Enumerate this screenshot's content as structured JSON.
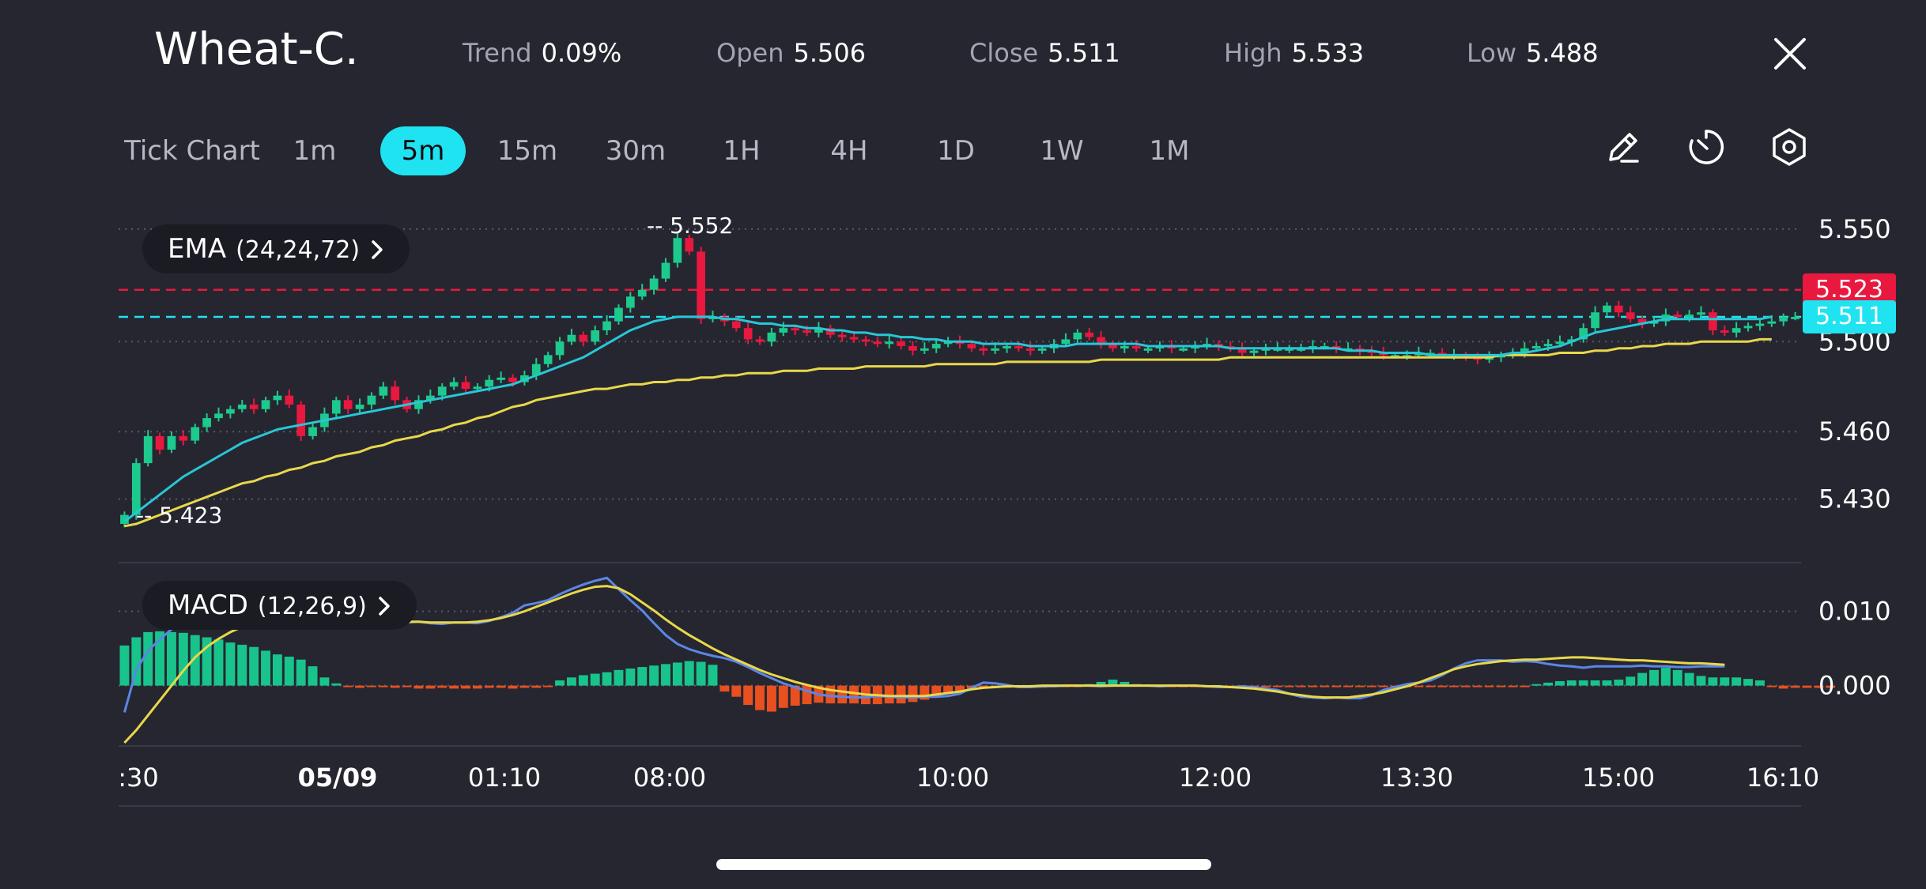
{
  "header": {
    "symbol": "Wheat-C.",
    "stats": [
      {
        "label": "Trend",
        "value": "0.09%"
      },
      {
        "label": "Open",
        "value": "5.506"
      },
      {
        "label": "Close",
        "value": "5.511"
      },
      {
        "label": "High",
        "value": "5.533"
      },
      {
        "label": "Low",
        "value": "5.488"
      }
    ]
  },
  "toolbar": {
    "timeframes": [
      "Tick Chart",
      "1m",
      "5m",
      "15m",
      "30m",
      "1H",
      "4H",
      "1D",
      "1W",
      "1M"
    ],
    "active": "5m",
    "tools": [
      "pencil-icon",
      "timer-icon",
      "settings-hexagon-icon"
    ]
  },
  "indicators": {
    "ema": {
      "name": "EMA",
      "params": "(24,24,72)"
    },
    "macd": {
      "name": "MACD",
      "params": "(12,26,9)"
    }
  },
  "colors": {
    "background": "#262631",
    "up": "#1ec98d",
    "down": "#e8183f",
    "ema_fast": "#27c7d6",
    "ema_slow": "#e8d84a",
    "macd_line": "#5b86e5",
    "signal_line": "#e8d84a",
    "hist_pos": "#18c48c",
    "hist_neg": "#e8501f",
    "accent": "#1fe3f0"
  },
  "chart_data": {
    "type": "candlestick",
    "price_axis": {
      "ticks": [
        5.55,
        5.5,
        5.46,
        5.43
      ],
      "tick_labels": [
        "5.550",
        "5.500",
        "5.460",
        "5.430"
      ],
      "range": [
        5.406,
        5.564
      ]
    },
    "x_axis_labels": [
      ":30",
      "05/09",
      "01:10",
      "08:00",
      "10:00",
      "12:00",
      "13:30",
      "15:00",
      "16:10"
    ],
    "price_lines": [
      {
        "label": "5.523",
        "value": 5.523,
        "color": "#e8183f"
      },
      {
        "label": "5.511",
        "value": 5.511,
        "color": "#1fe3f0"
      }
    ],
    "annotations": [
      {
        "label": "-- 5.552",
        "value": 5.552
      },
      {
        "label": "-- 5.423",
        "value": 5.423
      }
    ],
    "closes": [
      5.423,
      5.446,
      5.458,
      5.452,
      5.458,
      5.456,
      5.462,
      5.466,
      5.468,
      5.47,
      5.472,
      5.47,
      5.474,
      5.476,
      5.472,
      5.458,
      5.462,
      5.468,
      5.474,
      5.47,
      5.472,
      5.476,
      5.48,
      5.474,
      5.47,
      5.474,
      5.476,
      5.48,
      5.482,
      5.479,
      5.48,
      5.483,
      5.484,
      5.482,
      5.485,
      5.49,
      5.494,
      5.5,
      5.503,
      5.5,
      5.505,
      5.509,
      5.515,
      5.52,
      5.523,
      5.528,
      5.535,
      5.546,
      5.54,
      5.51,
      5.511,
      5.509,
      5.506,
      5.501,
      5.5,
      5.504,
      5.506,
      5.505,
      5.504,
      5.506,
      5.503,
      5.502,
      5.501,
      5.5,
      5.499,
      5.5,
      5.498,
      5.496,
      5.497,
      5.499,
      5.5,
      5.499,
      5.497,
      5.496,
      5.497,
      5.498,
      5.497,
      5.496,
      5.497,
      5.499,
      5.501,
      5.504,
      5.502,
      5.499,
      5.497,
      5.498,
      5.497,
      5.497,
      5.498,
      5.497,
      5.497,
      5.498,
      5.499,
      5.498,
      5.497,
      5.495,
      5.496,
      5.497,
      5.497,
      5.497,
      5.497,
      5.498,
      5.498,
      5.497,
      5.497,
      5.496,
      5.495,
      5.494,
      5.494,
      5.494,
      5.495,
      5.495,
      5.494,
      5.494,
      5.493,
      5.492,
      5.493,
      5.494,
      5.495,
      5.497,
      5.498,
      5.499,
      5.5,
      5.501,
      5.506,
      5.513,
      5.516,
      5.513,
      5.51,
      5.508,
      5.509,
      5.512,
      5.511,
      5.512,
      5.513,
      5.505,
      5.504,
      5.506,
      5.507,
      5.508,
      5.509,
      5.511,
      5.511
    ],
    "ema_fast": [
      5.42,
      5.424,
      5.428,
      5.432,
      5.436,
      5.44,
      5.443,
      5.446,
      5.449,
      5.452,
      5.455,
      5.457,
      5.459,
      5.461,
      5.462,
      5.463,
      5.464,
      5.465,
      5.466,
      5.467,
      5.468,
      5.469,
      5.47,
      5.471,
      5.472,
      5.473,
      5.474,
      5.475,
      5.476,
      5.477,
      5.478,
      5.479,
      5.48,
      5.481,
      5.483,
      5.485,
      5.487,
      5.489,
      5.491,
      5.493,
      5.496,
      5.499,
      5.502,
      5.505,
      5.507,
      5.509,
      5.51,
      5.511,
      5.511,
      5.511,
      5.511,
      5.51,
      5.51,
      5.509,
      5.508,
      5.508,
      5.507,
      5.507,
      5.506,
      5.506,
      5.505,
      5.505,
      5.504,
      5.504,
      5.503,
      5.503,
      5.502,
      5.502,
      5.501,
      5.501,
      5.5,
      5.5,
      5.5,
      5.499,
      5.499,
      5.499,
      5.499,
      5.498,
      5.498,
      5.498,
      5.498,
      5.499,
      5.499,
      5.499,
      5.499,
      5.499,
      5.499,
      5.498,
      5.498,
      5.498,
      5.498,
      5.498,
      5.498,
      5.498,
      5.497,
      5.497,
      5.497,
      5.497,
      5.497,
      5.497,
      5.497,
      5.497,
      5.497,
      5.497,
      5.496,
      5.496,
      5.496,
      5.495,
      5.495,
      5.495,
      5.495,
      5.494,
      5.494,
      5.494,
      5.494,
      5.494,
      5.494,
      5.494,
      5.495,
      5.495,
      5.496,
      5.497,
      5.498,
      5.5,
      5.502,
      5.504,
      5.505,
      5.506,
      5.507,
      5.508,
      5.509,
      5.51,
      5.51,
      5.51,
      5.51,
      5.51,
      5.51,
      5.51,
      5.51,
      5.51,
      5.511
    ],
    "ema_slow": [
      5.418,
      5.419,
      5.421,
      5.423,
      5.425,
      5.427,
      5.429,
      5.431,
      5.433,
      5.435,
      5.437,
      5.438,
      5.44,
      5.441,
      5.443,
      5.444,
      5.446,
      5.447,
      5.449,
      5.45,
      5.451,
      5.453,
      5.454,
      5.456,
      5.457,
      5.458,
      5.46,
      5.461,
      5.463,
      5.464,
      5.466,
      5.467,
      5.469,
      5.471,
      5.472,
      5.474,
      5.475,
      5.476,
      5.477,
      5.478,
      5.479,
      5.479,
      5.48,
      5.481,
      5.481,
      5.482,
      5.482,
      5.483,
      5.483,
      5.484,
      5.484,
      5.485,
      5.485,
      5.486,
      5.486,
      5.486,
      5.487,
      5.487,
      5.487,
      5.488,
      5.488,
      5.488,
      5.488,
      5.489,
      5.489,
      5.489,
      5.489,
      5.489,
      5.489,
      5.49,
      5.49,
      5.49,
      5.49,
      5.49,
      5.49,
      5.491,
      5.491,
      5.491,
      5.491,
      5.491,
      5.491,
      5.491,
      5.491,
      5.492,
      5.492,
      5.492,
      5.492,
      5.492,
      5.492,
      5.492,
      5.492,
      5.492,
      5.492,
      5.492,
      5.493,
      5.493,
      5.493,
      5.493,
      5.493,
      5.493,
      5.493,
      5.493,
      5.493,
      5.493,
      5.493,
      5.493,
      5.493,
      5.493,
      5.493,
      5.493,
      5.493,
      5.493,
      5.493,
      5.493,
      5.493,
      5.493,
      5.493,
      5.494,
      5.494,
      5.494,
      5.494,
      5.494,
      5.495,
      5.495,
      5.495,
      5.496,
      5.496,
      5.497,
      5.497,
      5.498,
      5.498,
      5.499,
      5.499,
      5.499,
      5.5,
      5.5,
      5.5,
      5.5,
      5.5,
      5.501,
      5.501
    ],
    "macd_axis": {
      "ticks": [
        0.01,
        0.0
      ],
      "tick_labels": [
        "0.010",
        "0.000"
      ],
      "range": [
        -0.0077,
        0.0157
      ]
    },
    "macd_line": [
      -0.0036,
      0.0021,
      0.0047,
      0.0062,
      0.0076,
      0.0087,
      0.0092,
      0.0094,
      0.0094,
      0.009,
      0.0087,
      0.0085,
      0.0083,
      0.0082,
      0.0084,
      0.0087,
      0.0089,
      0.0089,
      0.0089,
      0.0088,
      0.0087,
      0.0086,
      0.0085,
      0.0086,
      0.0085,
      0.0086,
      0.0084,
      0.0083,
      0.0085,
      0.0085,
      0.0084,
      0.0087,
      0.0092,
      0.0098,
      0.0108,
      0.0111,
      0.0115,
      0.0123,
      0.013,
      0.0136,
      0.0141,
      0.0145,
      0.013,
      0.0115,
      0.0101,
      0.0084,
      0.0068,
      0.0056,
      0.0049,
      0.0044,
      0.004,
      0.0037,
      0.0032,
      0.0025,
      0.0017,
      0.001,
      0.0003,
      -0.0002,
      -0.0007,
      -0.0012,
      -0.0014,
      -0.0015,
      -0.0016,
      -0.0016,
      -0.0014,
      -0.0015,
      -0.0016,
      -0.0016,
      -0.0015,
      -0.0015,
      -0.0014,
      -0.0011,
      -0.0003,
      0.0004,
      0.0003,
      0.0001,
      -0.0002,
      -0.0002,
      -0.0001,
      -0.0001,
      0.0,
      0.0,
      0.0,
      -0.0001,
      0.0,
      0.0,
      0.0,
      0.0,
      -0.0001,
      0.0,
      0.0,
      0.0,
      -0.0001,
      -0.0002,
      -0.0002,
      -0.0001,
      -0.0002,
      -0.0004,
      -0.0006,
      -0.0011,
      -0.0015,
      -0.0016,
      -0.0017,
      -0.0016,
      -0.0017,
      -0.0017,
      -0.0013,
      -0.0006,
      -0.0002,
      0.0002,
      0.0004,
      0.0007,
      0.0014,
      0.0023,
      0.003,
      0.0034,
      0.0034,
      0.0034,
      0.0032,
      0.0033,
      0.0032,
      0.0029,
      0.0027,
      0.0026,
      0.0024,
      0.0026,
      0.0026,
      0.0026,
      0.0026,
      0.0027,
      0.0026,
      0.0026,
      0.0025,
      0.0025,
      0.0026,
      0.0026,
      0.0026
    ],
    "signal_line": [
      -0.0077,
      -0.006,
      -0.004,
      -0.002,
      0.0,
      0.002,
      0.0038,
      0.0052,
      0.0063,
      0.0072,
      0.0079,
      0.0083,
      0.0086,
      0.0087,
      0.0088,
      0.0088,
      0.0088,
      0.0088,
      0.0087,
      0.0087,
      0.0087,
      0.0087,
      0.0086,
      0.0086,
      0.0086,
      0.0086,
      0.0085,
      0.0085,
      0.0085,
      0.0085,
      0.0086,
      0.0088,
      0.0091,
      0.0095,
      0.01,
      0.0106,
      0.0112,
      0.0118,
      0.0124,
      0.0129,
      0.0133,
      0.0134,
      0.0131,
      0.0123,
      0.0112,
      0.0101,
      0.0089,
      0.0078,
      0.0068,
      0.0059,
      0.005,
      0.0042,
      0.0035,
      0.0028,
      0.0021,
      0.0015,
      0.001,
      0.0005,
      0.0001,
      -0.0003,
      -0.0006,
      -0.0008,
      -0.001,
      -0.0012,
      -0.0013,
      -0.0014,
      -0.0014,
      -0.0014,
      -0.0014,
      -0.0012,
      -0.001,
      -0.0008,
      -0.0005,
      -0.0003,
      -0.0002,
      -0.0001,
      -0.0001,
      -0.0001,
      0.0,
      0.0,
      0.0,
      0.0,
      0.0,
      0.0,
      0.0,
      0.0,
      0.0,
      0.0,
      0.0,
      0.0,
      0.0,
      0.0,
      -0.0001,
      -0.0001,
      -0.0002,
      -0.0003,
      -0.0004,
      -0.0006,
      -0.0008,
      -0.0011,
      -0.0013,
      -0.0015,
      -0.0016,
      -0.0016,
      -0.0016,
      -0.0014,
      -0.0012,
      -0.0009,
      -0.0005,
      -0.0001,
      0.0004,
      0.001,
      0.0016,
      0.0022,
      0.0026,
      0.0029,
      0.0031,
      0.0033,
      0.0034,
      0.0035,
      0.0035,
      0.0036,
      0.0037,
      0.0038,
      0.0038,
      0.0037,
      0.0036,
      0.0035,
      0.0034,
      0.0034,
      0.0033,
      0.0032,
      0.0031,
      0.003,
      0.003,
      0.0029,
      0.0028
    ],
    "histogram": [
      0.0054,
      0.0065,
      0.0072,
      0.0073,
      0.0072,
      0.0071,
      0.0068,
      0.0065,
      0.0062,
      0.0058,
      0.0055,
      0.0052,
      0.0047,
      0.0042,
      0.0039,
      0.0035,
      0.0026,
      0.0011,
      0.0003,
      -0.0002,
      -0.0003,
      -0.0002,
      -0.0002,
      -0.0003,
      -0.0002,
      -0.0004,
      -0.0004,
      -0.0003,
      -0.0004,
      -0.0004,
      -0.0004,
      -0.0003,
      -0.0003,
      -0.0004,
      -0.0003,
      -0.0003,
      -0.0002,
      0.0007,
      0.0011,
      0.0014,
      0.0016,
      0.0018,
      0.0021,
      0.0023,
      0.0025,
      0.0027,
      0.0029,
      0.0031,
      0.0033,
      0.0032,
      0.0028,
      -0.0008,
      -0.0015,
      -0.0026,
      -0.0033,
      -0.0035,
      -0.003,
      -0.0027,
      -0.0025,
      -0.0023,
      -0.0024,
      -0.0024,
      -0.0024,
      -0.0025,
      -0.0025,
      -0.0024,
      -0.0024,
      -0.0022,
      -0.0019,
      -0.0015,
      -0.0011,
      -0.0007,
      -0.0004,
      -0.0002,
      -0.0002,
      -0.0003,
      -0.0003,
      -0.0003,
      -0.0003,
      -0.0002,
      -0.0002,
      -0.0001,
      0.0002,
      0.0005,
      0.0008,
      0.0005,
      0.0002,
      0.0001,
      0.0,
      -0.0001,
      -0.0001,
      -0.0001,
      -0.0001,
      -0.0002,
      -0.0002,
      -0.0001,
      -0.0001,
      -0.0001,
      -0.0001,
      -0.0001,
      -0.0001,
      -0.0001,
      -0.0001,
      -0.0002,
      -0.0002,
      -0.0002,
      -0.0002,
      -0.0002,
      -0.0002,
      -0.0002,
      -0.0002,
      -0.0002,
      -0.0002,
      -0.0002,
      -0.0002,
      -0.0002,
      -0.0002,
      -0.0002,
      -0.0002,
      -0.0001,
      0.0002,
      0.0004,
      0.0006,
      0.0007,
      0.0007,
      0.0007,
      0.0007,
      0.0008,
      0.0012,
      0.0017,
      0.0021,
      0.0024,
      0.0021,
      0.0017,
      0.0013,
      0.0011,
      0.0011,
      0.0011,
      0.0009,
      0.0007,
      -0.0002,
      -0.0004,
      -0.0003,
      -0.0003,
      -0.0003,
      -0.0003
    ]
  }
}
